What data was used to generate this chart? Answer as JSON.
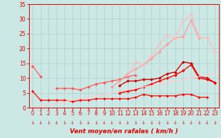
{
  "xlabel": "Vent moyen/en rafales ( km/h )",
  "background_color": "#cce8e4",
  "grid_color": "#b0cccc",
  "x_values": [
    0,
    1,
    2,
    3,
    4,
    5,
    6,
    7,
    8,
    9,
    10,
    11,
    12,
    13,
    14,
    15,
    16,
    17,
    18,
    19,
    20,
    21,
    22,
    23
  ],
  "series": [
    {
      "color": "#ff0000",
      "alpha": 1.0,
      "linewidth": 0.9,
      "marker": "D",
      "markersize": 1.8,
      "data": [
        5.5,
        2.5,
        2.5,
        2.5,
        2.5,
        2.0,
        2.5,
        2.5,
        3.0,
        3.0,
        3.0,
        3.0,
        3.0,
        3.5,
        4.5,
        4.0,
        4.0,
        4.0,
        4.0,
        4.5,
        4.5,
        3.5,
        3.5,
        null
      ]
    },
    {
      "color": "#cc0000",
      "alpha": 1.0,
      "linewidth": 1.0,
      "marker": "D",
      "markersize": 2.0,
      "data": [
        null,
        null,
        null,
        null,
        null,
        null,
        null,
        null,
        null,
        null,
        null,
        7.5,
        9.0,
        9.0,
        9.5,
        9.5,
        10.0,
        11.5,
        12.0,
        15.5,
        15.0,
        10.5,
        10.0,
        8.5
      ]
    },
    {
      "color": "#ff0000",
      "alpha": 1.0,
      "linewidth": 1.0,
      "marker": "D",
      "markersize": 2.0,
      "data": [
        null,
        null,
        null,
        null,
        null,
        null,
        null,
        null,
        null,
        null,
        null,
        5.0,
        5.5,
        6.0,
        7.0,
        8.0,
        9.0,
        10.0,
        11.0,
        12.5,
        14.5,
        10.0,
        9.5,
        8.5
      ]
    },
    {
      "color": "#ff5555",
      "alpha": 1.0,
      "linewidth": 0.9,
      "marker": "D",
      "markersize": 2.0,
      "data": [
        14.0,
        10.5,
        null,
        6.5,
        6.5,
        6.5,
        6.0,
        7.0,
        8.0,
        8.5,
        9.0,
        9.5,
        10.5,
        11.0,
        null,
        null,
        null,
        null,
        null,
        null,
        null,
        null,
        null,
        null
      ]
    },
    {
      "color": "#ff9999",
      "alpha": 1.0,
      "linewidth": 0.9,
      "marker": "D",
      "markersize": 2.0,
      "data": [
        null,
        null,
        null,
        null,
        null,
        null,
        null,
        null,
        null,
        null,
        7.0,
        9.0,
        11.5,
        13.0,
        14.5,
        16.5,
        19.0,
        21.5,
        23.5,
        24.0,
        29.5,
        23.5,
        null,
        null
      ]
    },
    {
      "color": "#ffbbbb",
      "alpha": 1.0,
      "linewidth": 0.9,
      "marker": "D",
      "markersize": 2.0,
      "data": [
        null,
        null,
        null,
        null,
        null,
        null,
        null,
        null,
        null,
        null,
        null,
        null,
        11.0,
        15.5,
        14.5,
        17.5,
        21.5,
        24.5,
        23.5,
        29.5,
        31.5,
        24.0,
        23.5,
        19.0
      ]
    },
    {
      "color": "#ffcccc",
      "alpha": 1.0,
      "linewidth": 1.0,
      "marker": null,
      "markersize": 0,
      "data": [
        0,
        0.5,
        1,
        1.5,
        2,
        2.5,
        3,
        3.5,
        4,
        4.5,
        5,
        5.5,
        6,
        6.5,
        7,
        7.5,
        8,
        8.5,
        9,
        9.5,
        10,
        10.5,
        11,
        11.5
      ]
    }
  ],
  "ylim": [
    0,
    35
  ],
  "xlim": [
    -0.5,
    23.5
  ],
  "yticks": [
    0,
    5,
    10,
    15,
    20,
    25,
    30,
    35
  ],
  "xticks": [
    0,
    1,
    2,
    3,
    4,
    5,
    6,
    7,
    8,
    9,
    10,
    11,
    12,
    13,
    14,
    15,
    16,
    17,
    18,
    19,
    20,
    21,
    22,
    23
  ],
  "tick_color": "#dd0000",
  "label_color": "#dd0000"
}
